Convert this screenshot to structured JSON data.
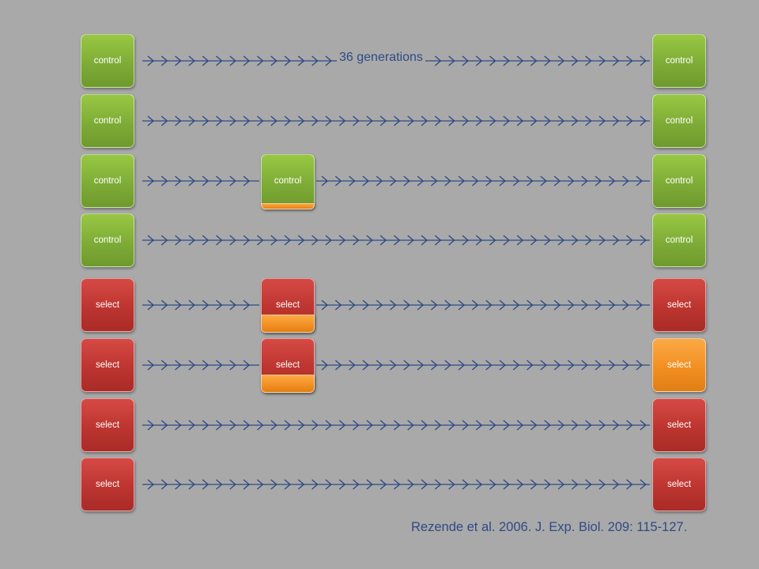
{
  "generations_label": "36 generations",
  "citation": "Rezende et al. 2006. J. Exp. Biol. 209: 115-127.",
  "colors": {
    "control": "#7eac37",
    "select": "#bd3530",
    "orange": "#f28f22",
    "arrow": "#2f4b84",
    "background": "#a9a9a9",
    "text": "#2f4b84"
  },
  "rows": [
    {
      "start": {
        "label": "control",
        "kind": "control"
      },
      "mid": null,
      "end": {
        "label": "control",
        "kind": "control"
      }
    },
    {
      "start": {
        "label": "control",
        "kind": "control"
      },
      "mid": null,
      "end": {
        "label": "control",
        "kind": "control"
      }
    },
    {
      "start": {
        "label": "control",
        "kind": "control"
      },
      "mid": {
        "label": "control",
        "kind": "control",
        "orange_band": "thin"
      },
      "end": {
        "label": "control",
        "kind": "control"
      }
    },
    {
      "start": {
        "label": "control",
        "kind": "control"
      },
      "mid": null,
      "end": {
        "label": "control",
        "kind": "control"
      }
    },
    {
      "start": {
        "label": "select",
        "kind": "select"
      },
      "mid": {
        "label": "select",
        "kind": "select",
        "orange_band": "thick"
      },
      "end": {
        "label": "select",
        "kind": "select"
      }
    },
    {
      "start": {
        "label": "select",
        "kind": "select"
      },
      "mid": {
        "label": "select",
        "kind": "select",
        "orange_band": "thick"
      },
      "end": {
        "label": "select",
        "kind": "orange"
      }
    },
    {
      "start": {
        "label": "select",
        "kind": "select"
      },
      "mid": null,
      "end": {
        "label": "select",
        "kind": "select"
      }
    },
    {
      "start": {
        "label": "select",
        "kind": "select"
      },
      "mid": null,
      "end": {
        "label": "select",
        "kind": "select"
      }
    }
  ]
}
